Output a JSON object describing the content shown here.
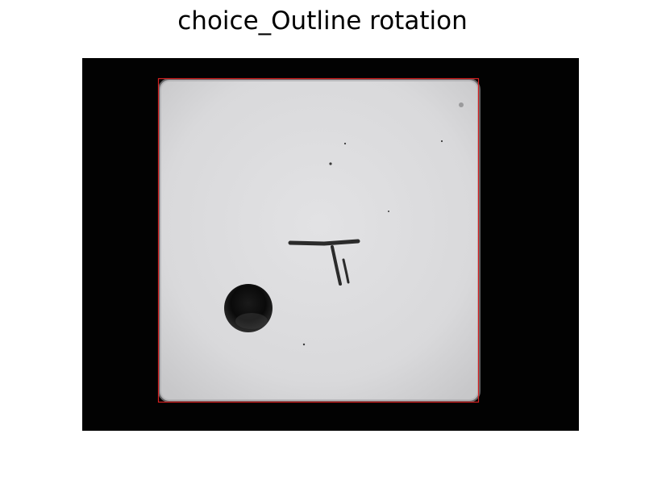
{
  "figure": {
    "title": "choice_Outline rotation"
  },
  "image": {
    "background_color": "#020202",
    "object": "white tile with a dark round hole and handwritten marking",
    "outline_color": "#d62020"
  }
}
